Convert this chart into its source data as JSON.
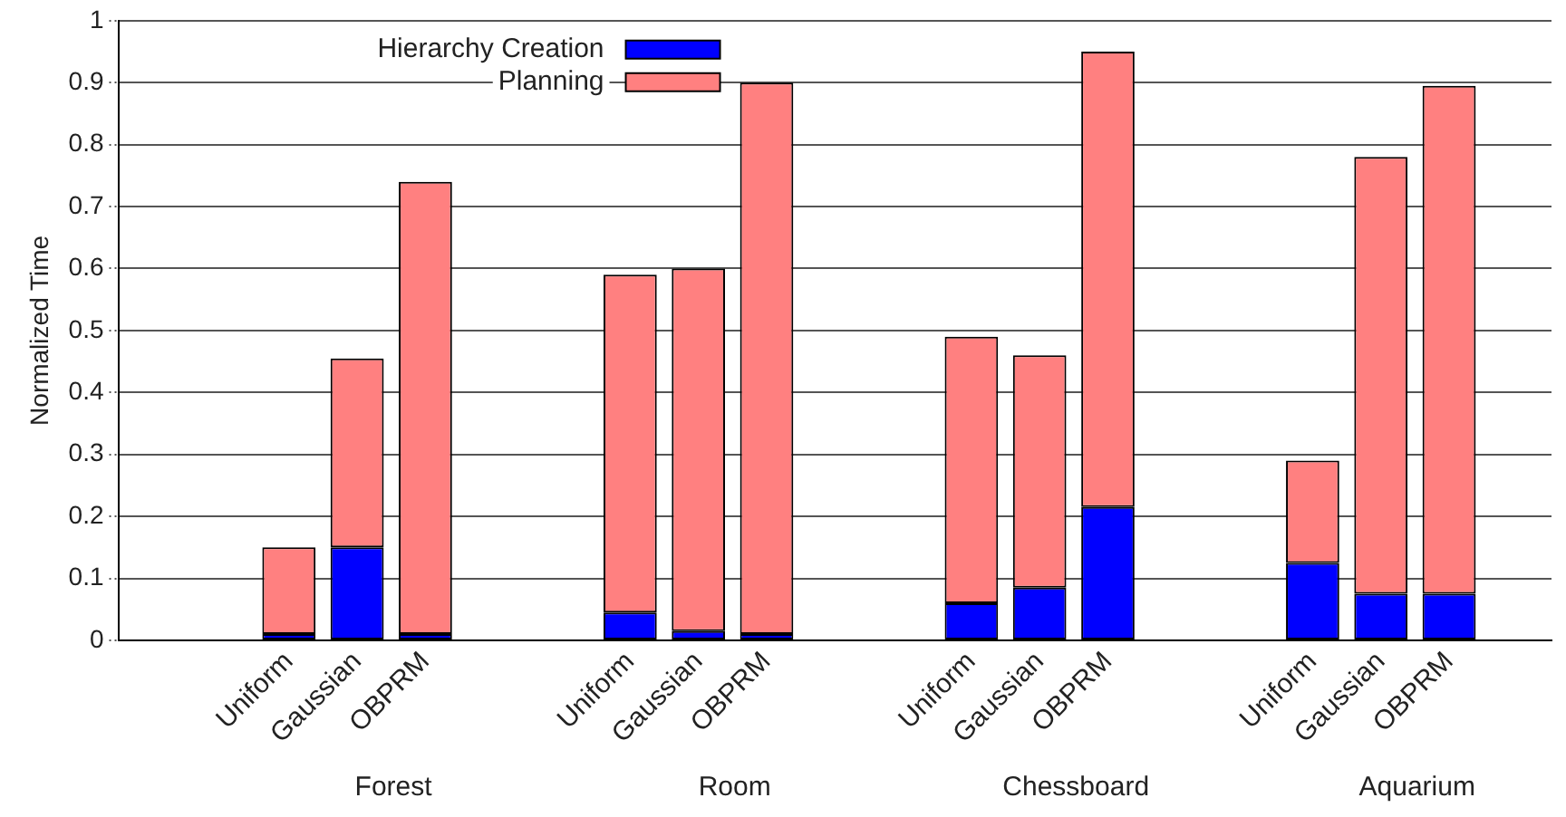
{
  "chart_data": {
    "type": "bar",
    "stacked": true,
    "ylabel": "Normalized Time",
    "categories": [
      null,
      null,
      "Uniform",
      "Gaussian",
      "OBPRM",
      null,
      null,
      "Uniform",
      "Gaussian",
      "OBPRM",
      null,
      null,
      "Uniform",
      "Gaussian",
      "OBPRM",
      null,
      null,
      "Uniform",
      "Gaussian",
      "OBPRM",
      null
    ],
    "series": [
      {
        "name": "Hierarchy Creation",
        "color": "#0000ff",
        "values": [
          null,
          null,
          0.01,
          0.15,
          0.01,
          null,
          null,
          0.045,
          0.015,
          0.01,
          null,
          null,
          0.06,
          0.085,
          0.215,
          null,
          null,
          0.125,
          0.075,
          0.075,
          null
        ]
      },
      {
        "name": "Planning",
        "color": "#ff8080",
        "values": [
          null,
          null,
          0.14,
          0.305,
          0.73,
          null,
          null,
          0.545,
          0.585,
          0.89,
          null,
          null,
          0.43,
          0.375,
          0.735,
          null,
          null,
          0.165,
          0.705,
          0.82,
          null
        ]
      }
    ],
    "ylim": [
      0,
      1
    ],
    "yticks": [
      0,
      0.1,
      0.2,
      0.3,
      0.4,
      0.5,
      0.6,
      0.7,
      0.8,
      0.9,
      1
    ],
    "grid": "y",
    "legend": "top left",
    "annotations": [
      "Forest",
      "Room",
      "Chessboard",
      "Aquarium"
    ]
  }
}
